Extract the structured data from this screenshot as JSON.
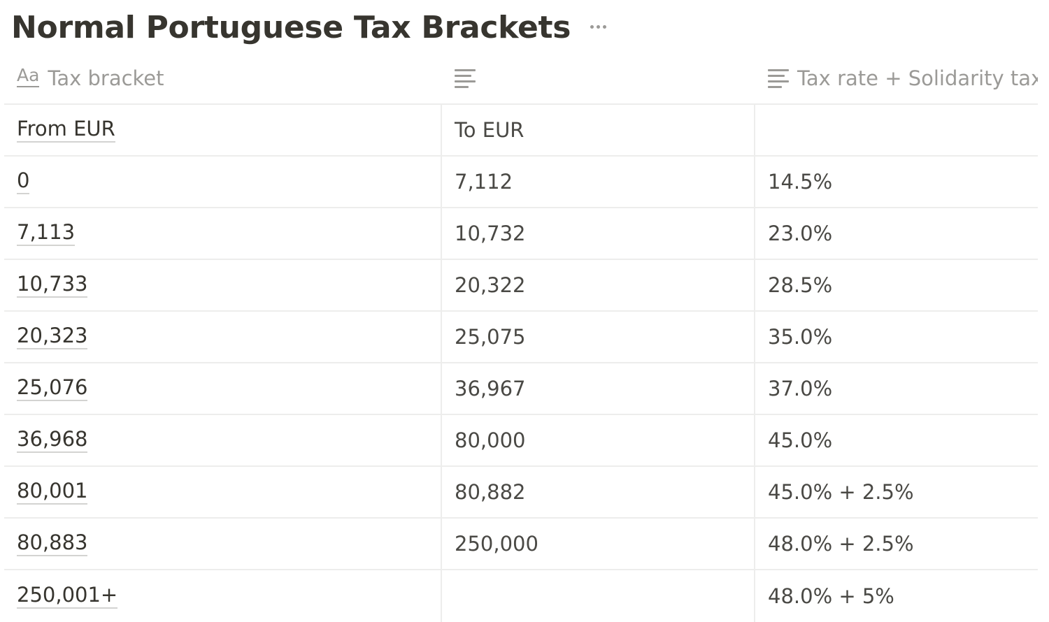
{
  "page": {
    "title": "Normal Portuguese Tax Brackets",
    "more_icon": "more-horizontal-icon"
  },
  "table": {
    "columns": [
      {
        "label": "Tax bracket",
        "icon": "text-title-icon"
      },
      {
        "label": "",
        "icon": "text-property-icon"
      },
      {
        "label": "Tax rate + Solidarity tax",
        "icon": "text-property-icon"
      }
    ],
    "rows": [
      {
        "from": "From EUR",
        "to": "To EUR",
        "rate": ""
      },
      {
        "from": "0",
        "to": "7,112",
        "rate": "14.5%"
      },
      {
        "from": "7,113",
        "to": "10,732",
        "rate": "23.0%"
      },
      {
        "from": "10,733",
        "to": "20,322",
        "rate": "28.5%"
      },
      {
        "from": "20,323",
        "to": "25,075",
        "rate": "35.0%"
      },
      {
        "from": "25,076",
        "to": "36,967",
        "rate": "37.0%"
      },
      {
        "from": "36,968",
        "to": "80,000",
        "rate": "45.0%"
      },
      {
        "from": "80,001",
        "to": "80,882",
        "rate": "45.0% + 2.5%"
      },
      {
        "from": "80,883",
        "to": "250,000",
        "rate": "48.0% + 2.5%"
      },
      {
        "from": "250,001+",
        "to": "",
        "rate": "48.0% + 5%"
      }
    ]
  },
  "colors": {
    "text": "#37352f",
    "muted": "#9b9a97",
    "border": "#ededec"
  }
}
